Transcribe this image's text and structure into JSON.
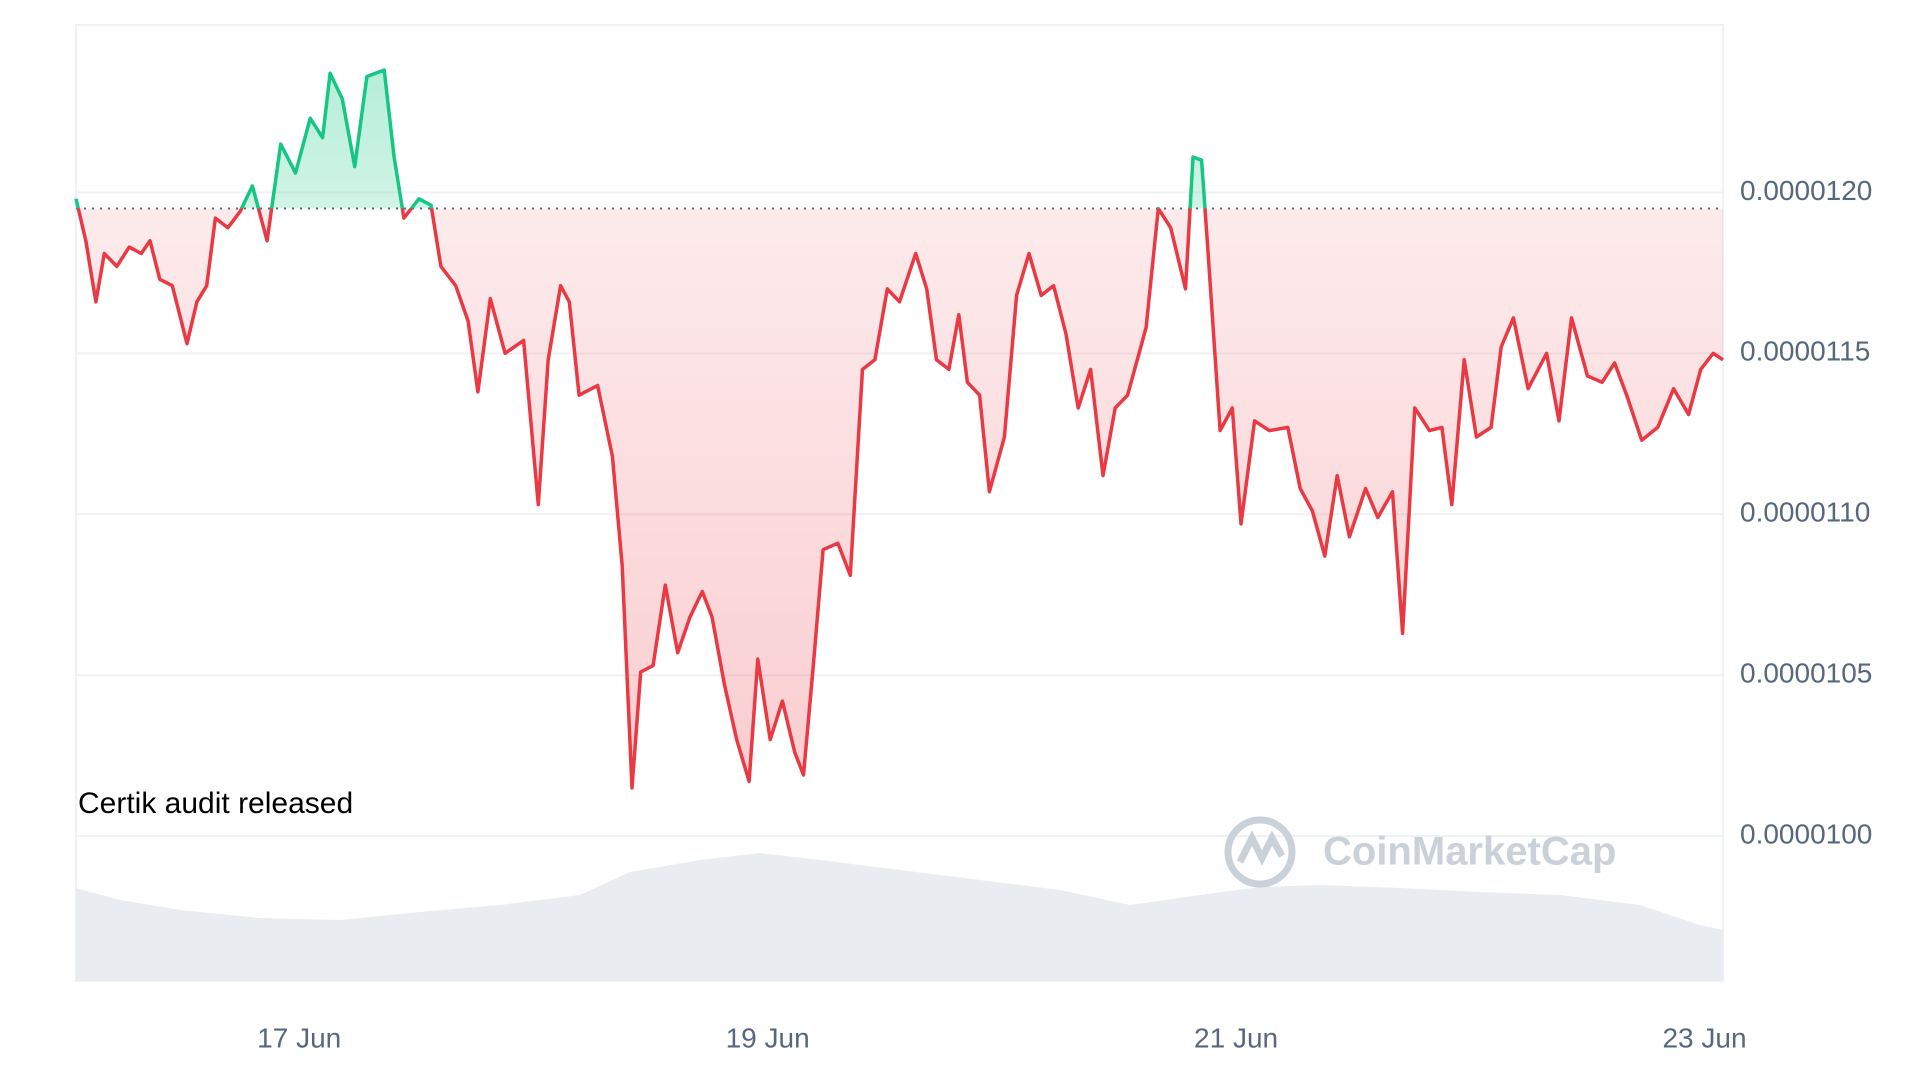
{
  "chart_data": {
    "type": "line",
    "annotation": "Certik audit released",
    "watermark": "CoinMarketCap",
    "baseline": 1.195e-05,
    "up_color": "#16c784",
    "down_color": "#ea3943",
    "grid": true,
    "xlim": [
      16.047,
      23.079
    ],
    "xticks": [
      {
        "value": 17,
        "label": "17 Jun"
      },
      {
        "value": 19,
        "label": "19 Jun"
      },
      {
        "value": 21,
        "label": "21 Jun"
      },
      {
        "value": 23,
        "label": "23 Jun"
      }
    ],
    "ylim": [
      9.55e-06,
      1.252e-05
    ],
    "yticks": [
      {
        "value": 1e-05,
        "label": "0.0000100"
      },
      {
        "value": 1.05e-05,
        "label": "0.0000105"
      },
      {
        "value": 1.1e-05,
        "label": "0.0000110"
      },
      {
        "value": 1.15e-05,
        "label": "0.0000115"
      },
      {
        "value": 1.2e-05,
        "label": "0.0000120"
      }
    ],
    "x": [
      16.047,
      16.089,
      16.132,
      16.168,
      16.221,
      16.274,
      16.326,
      16.363,
      16.405,
      16.458,
      16.521,
      16.563,
      16.605,
      16.642,
      16.695,
      16.747,
      16.8,
      16.863,
      16.921,
      16.984,
      17.047,
      17.1,
      17.132,
      17.184,
      17.237,
      17.289,
      17.363,
      17.405,
      17.447,
      17.511,
      17.563,
      17.605,
      17.668,
      17.721,
      17.763,
      17.816,
      17.879,
      17.958,
      18.021,
      18.063,
      18.116,
      18.153,
      18.195,
      18.274,
      18.337,
      18.379,
      18.421,
      18.458,
      18.511,
      18.563,
      18.616,
      18.668,
      18.721,
      18.763,
      18.816,
      18.868,
      18.921,
      18.958,
      19.011,
      19.063,
      19.116,
      19.153,
      19.195,
      19.237,
      19.3,
      19.353,
      19.405,
      19.458,
      19.511,
      19.563,
      19.632,
      19.679,
      19.721,
      19.774,
      19.816,
      19.853,
      19.905,
      19.947,
      20.011,
      20.063,
      20.116,
      20.168,
      20.221,
      20.274,
      20.326,
      20.379,
      20.432,
      20.484,
      20.537,
      20.616,
      20.668,
      20.721,
      20.784,
      20.816,
      20.853,
      20.879,
      20.932,
      20.984,
      21.021,
      21.079,
      21.142,
      21.221,
      21.274,
      21.326,
      21.379,
      21.432,
      21.484,
      21.553,
      21.605,
      21.668,
      21.711,
      21.763,
      21.826,
      21.879,
      21.921,
      21.974,
      22.026,
      22.089,
      22.132,
      22.184,
      22.247,
      22.326,
      22.379,
      22.432,
      22.5,
      22.563,
      22.616,
      22.668,
      22.732,
      22.8,
      22.868,
      22.932,
      22.984,
      23.037,
      23.079
    ],
    "values": [
      1.198e-05,
      1.185e-05,
      1.166e-05,
      1.181e-05,
      1.177e-05,
      1.183e-05,
      1.181e-05,
      1.185e-05,
      1.173e-05,
      1.171e-05,
      1.153e-05,
      1.166e-05,
      1.171e-05,
      1.192e-05,
      1.189e-05,
      1.194e-05,
      1.202e-05,
      1.185e-05,
      1.215e-05,
      1.206e-05,
      1.223e-05,
      1.217e-05,
      1.237e-05,
      1.229e-05,
      1.208e-05,
      1.236e-05,
      1.238e-05,
      1.211e-05,
      1.192e-05,
      1.198e-05,
      1.196e-05,
      1.177e-05,
      1.171e-05,
      1.16e-05,
      1.138e-05,
      1.167e-05,
      1.15e-05,
      1.154e-05,
      1.103e-05,
      1.148e-05,
      1.171e-05,
      1.166e-05,
      1.137e-05,
      1.14e-05,
      1.118e-05,
      1.084e-05,
      1.015e-05,
      1.051e-05,
      1.053e-05,
      1.078e-05,
      1.057e-05,
      1.068e-05,
      1.076e-05,
      1.068e-05,
      1.047e-05,
      1.03e-05,
      1.017e-05,
      1.055e-05,
      1.03e-05,
      1.042e-05,
      1.026e-05,
      1.019e-05,
      1.053e-05,
      1.089e-05,
      1.091e-05,
      1.081e-05,
      1.145e-05,
      1.148e-05,
      1.17e-05,
      1.166e-05,
      1.181e-05,
      1.17e-05,
      1.148e-05,
      1.145e-05,
      1.162e-05,
      1.141e-05,
      1.137e-05,
      1.107e-05,
      1.124e-05,
      1.168e-05,
      1.181e-05,
      1.168e-05,
      1.171e-05,
      1.156e-05,
      1.133e-05,
      1.145e-05,
      1.112e-05,
      1.133e-05,
      1.137e-05,
      1.158e-05,
      1.195e-05,
      1.189e-05,
      1.17e-05,
      1.211e-05,
      1.21e-05,
      1.183e-05,
      1.126e-05,
      1.133e-05,
      1.097e-05,
      1.129e-05,
      1.126e-05,
      1.127e-05,
      1.108e-05,
      1.101e-05,
      1.087e-05,
      1.112e-05,
      1.093e-05,
      1.108e-05,
      1.099e-05,
      1.107e-05,
      1.063e-05,
      1.133e-05,
      1.126e-05,
      1.127e-05,
      1.103e-05,
      1.148e-05,
      1.124e-05,
      1.127e-05,
      1.152e-05,
      1.161e-05,
      1.139e-05,
      1.15e-05,
      1.129e-05,
      1.161e-05,
      1.143e-05,
      1.141e-05,
      1.147e-05,
      1.137e-05,
      1.123e-05,
      1.127e-05,
      1.139e-05,
      1.131e-05,
      1.145e-05,
      1.15e-05,
      1.148e-05
    ]
  }
}
